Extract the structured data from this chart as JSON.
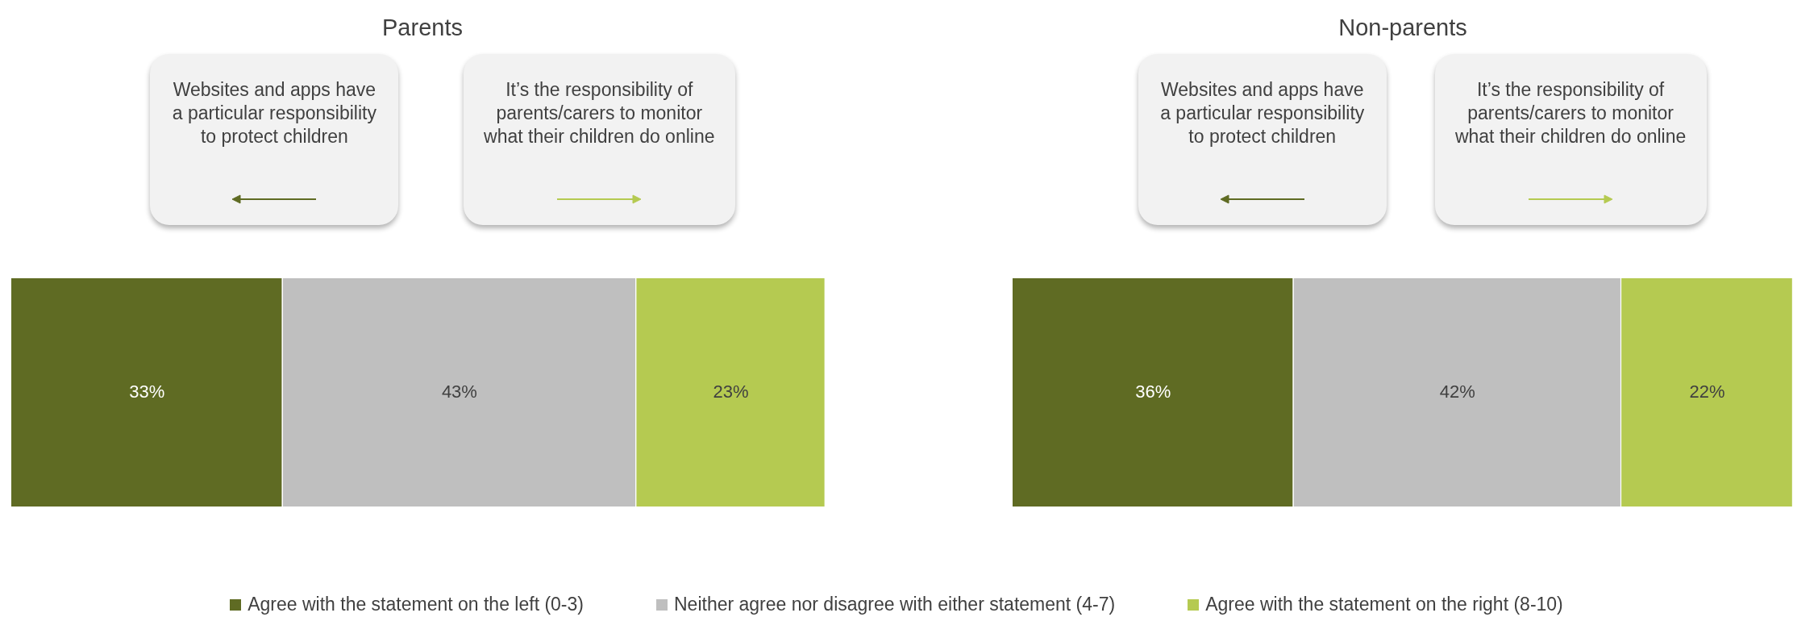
{
  "chart_data": [
    {
      "type": "bar",
      "title": "Parents",
      "orientation": "horizontal",
      "stacked": true,
      "categories": [
        null
      ],
      "legend": "bottom",
      "annotations": [
        "Websites and apps have a particular responsibility to protect children",
        "It’s the responsibility of parents/carers to monitor what their children do online"
      ],
      "series": [
        {
          "name": "Agree with the statement on the left (0-3)",
          "color": "#5f6b23",
          "values": [
            33
          ],
          "value_labels": [
            "33%"
          ]
        },
        {
          "name": "Neither agree nor disagree with either statement (4-7)",
          "color": "#bfbfbf",
          "values": [
            43
          ],
          "value_labels": [
            "43%"
          ]
        },
        {
          "name": "Agree with the statement on the right (8-10)",
          "color": "#b5ca51",
          "values": [
            23
          ],
          "value_labels": [
            "23%"
          ]
        }
      ]
    },
    {
      "type": "bar",
      "title": "Non-parents",
      "orientation": "horizontal",
      "stacked": true,
      "categories": [
        null
      ],
      "annotations": [
        "Websites and apps have a particular responsibility to protect children",
        "It’s the responsibility of parents/carers to monitor what their children do online"
      ],
      "series": [
        {
          "color": "#5f6b23",
          "values": [
            36
          ],
          "value_labels": [
            "36%"
          ]
        },
        {
          "color": "#bfbfbf",
          "values": [
            42
          ],
          "value_labels": [
            "42%"
          ]
        },
        {
          "color": "#b5ca51",
          "values": [
            22
          ],
          "value_labels": [
            "22%"
          ]
        }
      ]
    }
  ]
}
